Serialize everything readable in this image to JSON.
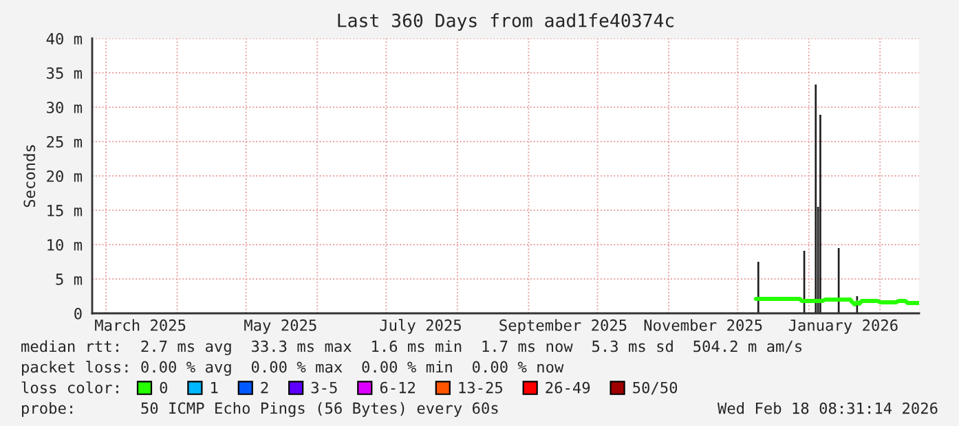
{
  "chart_data": {
    "type": "bar",
    "title": "Last 360 Days from aad1fe40374c",
    "ylabel": "Seconds",
    "x": [
      "2025-12-09",
      "2025-12-10",
      "2025-12-11",
      "2025-12-20",
      "2025-12-28",
      "2025-12-29",
      "2025-12-30",
      "2025-12-31",
      "2026-01-03",
      "2026-01-04",
      "2026-01-05",
      "2026-01-06",
      "2026-01-07",
      "2026-01-08",
      "2026-01-13",
      "2026-01-14",
      "2026-01-15",
      "2026-01-19",
      "2026-01-20",
      "2026-01-21",
      "2026-01-22",
      "2026-01-23",
      "2026-01-24",
      "2026-01-31",
      "2026-02-01",
      "2026-02-08",
      "2026-02-09",
      "2026-02-12",
      "2026-02-13",
      "2026-02-18"
    ],
    "series": [
      {
        "color": "#1e1e1e",
        "x": [
          "2025-12-10",
          "2025-12-30",
          "2026-01-04",
          "2026-01-05",
          "2026-01-06",
          "2026-01-14",
          "2026-01-22"
        ],
        "values": [
          7.5,
          9.1,
          33.3,
          15.5,
          28.9,
          9.5,
          2.5
        ]
      },
      {
        "type": "line",
        "name": "0",
        "color": "#26ff00",
        "values": [
          2.1,
          2.1,
          2.1,
          2.1,
          2.1,
          1.8,
          1.8,
          1.8,
          1.8,
          1.8,
          1.8,
          1.8,
          1.8,
          2.0,
          2.0,
          2.0,
          2.0,
          2.0,
          1.6,
          1.3,
          1.6,
          1.4,
          1.8,
          1.8,
          1.6,
          1.6,
          1.8,
          1.8,
          1.5,
          1.5
        ]
      },
      {
        "type": "line",
        "name": "1",
        "color": "#00b8ff",
        "values": [
          null,
          null,
          null,
          null,
          null,
          null,
          null,
          null,
          null,
          null,
          null,
          null,
          null,
          null,
          null,
          null,
          null,
          null,
          null,
          null,
          null,
          null,
          null,
          null,
          null,
          null,
          null,
          null,
          null,
          null
        ]
      },
      {
        "type": "line",
        "name": "2",
        "color": "#0059ff",
        "values": [
          null,
          null,
          null,
          null,
          null,
          null,
          null,
          null,
          null,
          null,
          null,
          null,
          null,
          null,
          null,
          null,
          null,
          null,
          null,
          null,
          null,
          null,
          null,
          null,
          null,
          null,
          null,
          null,
          null,
          null
        ]
      },
      {
        "type": "line",
        "name": "3-5",
        "color": "#5e00ff",
        "values": [
          null,
          null,
          null,
          null,
          null,
          null,
          null,
          null,
          null,
          null,
          null,
          null,
          null,
          null,
          null,
          null,
          null,
          null,
          null,
          null,
          null,
          null,
          null,
          null,
          null,
          null,
          null,
          null,
          null,
          null
        ]
      },
      {
        "type": "line",
        "name": "6-12",
        "color": "#dd00ff",
        "values": [
          null,
          null,
          null,
          null,
          null,
          null,
          null,
          null,
          null,
          null,
          null,
          null,
          null,
          null,
          null,
          null,
          null,
          null,
          null,
          null,
          null,
          null,
          null,
          null,
          null,
          null,
          null,
          null,
          null,
          null
        ]
      },
      {
        "type": "line",
        "name": "13-25",
        "color": "#ff5500",
        "values": [
          null,
          null,
          null,
          null,
          null,
          null,
          null,
          null,
          null,
          null,
          null,
          null,
          null,
          null,
          null,
          null,
          null,
          null,
          null,
          null,
          null,
          null,
          null,
          null,
          null,
          null,
          null,
          null,
          null,
          null
        ]
      },
      {
        "type": "line",
        "name": "26-49",
        "color": "#ff0000",
        "values": [
          null,
          null,
          null,
          null,
          null,
          null,
          null,
          null,
          null,
          null,
          null,
          null,
          null,
          null,
          null,
          null,
          null,
          null,
          null,
          null,
          null,
          null,
          null,
          null,
          null,
          null,
          null,
          null,
          null,
          null
        ]
      },
      {
        "type": "line",
        "name": "50/50",
        "color": "#a00000",
        "values": [
          null,
          null,
          null,
          null,
          null,
          null,
          null,
          null,
          null,
          null,
          null,
          null,
          null,
          null,
          null,
          null,
          null,
          null,
          null,
          null,
          null,
          null,
          null,
          null,
          null,
          null,
          null,
          null,
          null,
          null
        ]
      }
    ],
    "legend": "bottom",
    "legend_title": "loss color:",
    "xlim": [
      "2025-02-23",
      "2026-02-18"
    ],
    "xticks": [
      {
        "value": "2025-03-01",
        "label": null
      },
      {
        "value": "2025-03-16",
        "label": "March 2025"
      },
      {
        "value": "2025-04-01",
        "label": null
      },
      {
        "value": "2025-05-01",
        "label": null
      },
      {
        "value": "2025-05-16",
        "label": "May 2025"
      },
      {
        "value": "2025-06-01",
        "label": null
      },
      {
        "value": "2025-07-01",
        "label": null
      },
      {
        "value": "2025-07-16",
        "label": "July 2025"
      },
      {
        "value": "2025-08-01",
        "label": null
      },
      {
        "value": "2025-09-01",
        "label": null
      },
      {
        "value": "2025-09-16",
        "label": "September 2025"
      },
      {
        "value": "2025-10-01",
        "label": null
      },
      {
        "value": "2025-11-01",
        "label": null
      },
      {
        "value": "2025-11-16",
        "label": "November 2025"
      },
      {
        "value": "2025-12-01",
        "label": null
      },
      {
        "value": "2026-01-01",
        "label": null
      },
      {
        "value": "2026-01-16",
        "label": "January 2026"
      },
      {
        "value": "2026-02-01",
        "label": null
      }
    ],
    "ylim": [
      0,
      40
    ],
    "yticks": [
      {
        "value": 0,
        "label": "0"
      },
      {
        "value": 5,
        "label": "5 m"
      },
      {
        "value": 10,
        "label": "10 m"
      },
      {
        "value": 15,
        "label": "15 m"
      },
      {
        "value": 20,
        "label": "20 m"
      },
      {
        "value": 25,
        "label": "25 m"
      },
      {
        "value": 30,
        "label": "30 m"
      },
      {
        "value": 35,
        "label": "35 m"
      },
      {
        "value": 40,
        "label": "40 m"
      }
    ],
    "grid": true,
    "annotations": [
      "median rtt:  2.7 ms avg  33.3 ms max  1.6 ms min  1.7 ms now  5.3 ms sd  504.2 m am/s",
      "packet loss: 0.00 % avg  0.00 % max  0.00 % min  0.00 % now",
      "probe:       50 ICMP Echo Pings (56 Bytes) every 60s",
      "Wed Feb 18 08:31:14 2026"
    ]
  }
}
